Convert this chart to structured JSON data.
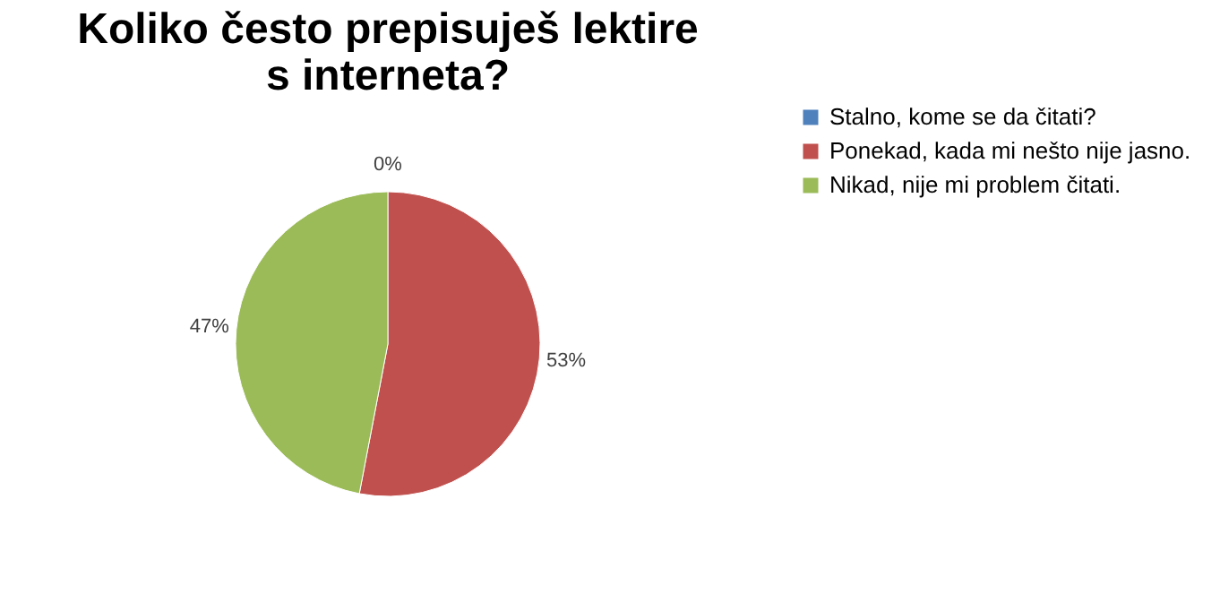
{
  "chart_data": {
    "type": "pie",
    "title": "Koliko često prepisuješ lektire s interneta?",
    "categories": [
      "Stalno, kome se da čitati?",
      "Ponekad, kada mi nešto nije jasno.",
      "Nikad, nije mi problem čitati."
    ],
    "values": [
      0,
      53,
      47
    ],
    "colors": [
      "#4f81bd",
      "#c0504d",
      "#9bbb59"
    ],
    "value_labels": [
      "0%",
      "53%",
      "47%"
    ],
    "legend": "right"
  }
}
